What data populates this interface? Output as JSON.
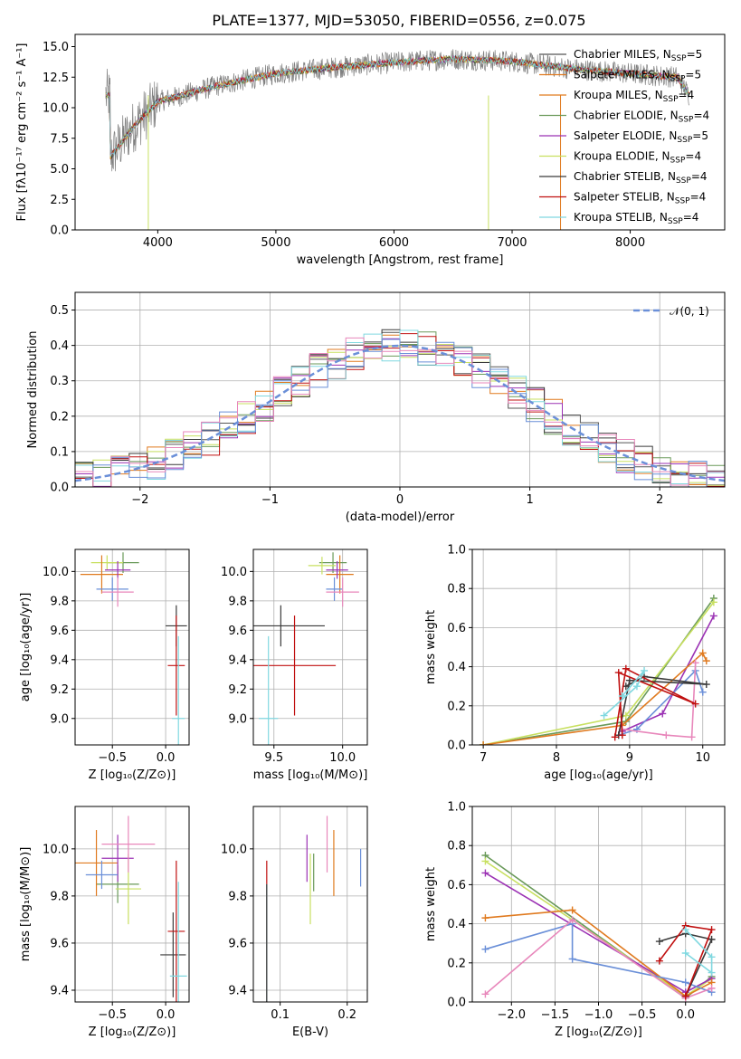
{
  "figure": {
    "title": "PLATE=1377, MJD=53050, FIBERID=0556, z=0.075"
  },
  "colors": [
    "#555555",
    "#e07a1f",
    "#6a9a5a",
    "#9b32b4",
    "#c8e060",
    "#3a3a3a",
    "#c01010",
    "#80d8e0",
    "#6a8fd8",
    "#e887bb",
    "#888888"
  ],
  "chart_data": [
    {
      "id": "spectrum",
      "type": "line",
      "xlabel": "wavelength [Angstrom, rest frame]",
      "ylabel": "Flux [fλ10⁻¹⁷ erg cm⁻² s⁻¹ A⁻¹]",
      "xlim": [
        3300,
        8800
      ],
      "ylim": [
        0,
        16
      ],
      "xticks": [
        "4000",
        "5000",
        "6000",
        "7000",
        "8000"
      ],
      "yticks": [
        "0.0",
        "2.5",
        "5.0",
        "7.5",
        "10.0",
        "12.5",
        "15.0"
      ],
      "legend_position": "right",
      "data_curve": [
        [
          3600,
          6.0
        ],
        [
          3800,
          8.5
        ],
        [
          4000,
          10.5
        ],
        [
          4200,
          11.0
        ],
        [
          4500,
          11.8
        ],
        [
          5000,
          12.8
        ],
        [
          5500,
          13.3
        ],
        [
          6000,
          13.7
        ],
        [
          6500,
          14.0
        ],
        [
          7000,
          13.8
        ],
        [
          7500,
          13.2
        ],
        [
          8000,
          12.8
        ],
        [
          8400,
          12.5
        ],
        [
          8500,
          11.0
        ]
      ],
      "series": [
        {
          "name": "Chabrier MILES, N",
          "sub": "SSP",
          "suffix": "=5"
        },
        {
          "name": "Salpeter MILES, N",
          "sub": "SSP",
          "suffix": "=5"
        },
        {
          "name": "Kroupa MILES, N",
          "sub": "SSP",
          "suffix": "=4"
        },
        {
          "name": "Chabrier ELODIE, N",
          "sub": "SSP",
          "suffix": "=4"
        },
        {
          "name": "Salpeter ELODIE, N",
          "sub": "SSP",
          "suffix": "=5"
        },
        {
          "name": "Kroupa ELODIE, N",
          "sub": "SSP",
          "suffix": "=4"
        },
        {
          "name": "Chabrier STELIB, N",
          "sub": "SSP",
          "suffix": "=4"
        },
        {
          "name": "Salpeter STELIB, N",
          "sub": "SSP",
          "suffix": "=4"
        },
        {
          "name": "Kroupa STELIB, N",
          "sub": "SSP",
          "suffix": "=4"
        }
      ]
    },
    {
      "id": "residuals",
      "type": "line",
      "xlabel": "(data-model)/error",
      "ylabel": "Normed distribution",
      "xlim": [
        -2.5,
        2.5
      ],
      "ylim": [
        0,
        0.55
      ],
      "xticks": [
        "−2",
        "−1",
        "0",
        "1",
        "2"
      ],
      "yticks": [
        "0.0",
        "0.1",
        "0.2",
        "0.3",
        "0.4",
        "0.5"
      ],
      "legend": "𝒩(0, 1)",
      "legend_position": "top-right",
      "grid": true
    },
    {
      "id": "age_vs_Z",
      "type": "scatter",
      "xlabel": "Z [log₁₀(Z/Z⊙)]",
      "ylabel": "age  [log₁₀(age/yr)]",
      "xlim": [
        -0.85,
        0.22
      ],
      "ylim": [
        8.82,
        10.15
      ],
      "xticks": [
        "−0.5",
        "0.0"
      ],
      "yticks": [
        "9.0",
        "9.2",
        "9.4",
        "9.6",
        "9.8",
        "10.0"
      ],
      "grid": true,
      "points": [
        {
          "x": -0.4,
          "y": 10.06,
          "xerr": 0.15,
          "yerr": 0.07,
          "c": 2
        },
        {
          "x": -0.55,
          "y": 10.06,
          "xerr": 0.15,
          "yerr": 0.05,
          "c": 4
        },
        {
          "x": -0.6,
          "y": 9.98,
          "xerr": 0.2,
          "yerr": 0.13,
          "c": 1
        },
        {
          "x": -0.45,
          "y": 10.01,
          "xerr": 0.12,
          "yerr": 0.06,
          "c": 3
        },
        {
          "x": -0.5,
          "y": 9.88,
          "xerr": 0.15,
          "yerr": 0.08,
          "c": 8
        },
        {
          "x": -0.45,
          "y": 9.86,
          "xerr": 0.15,
          "yerr": 0.1,
          "c": 9
        },
        {
          "x": 0.1,
          "y": 9.63,
          "xerr": 0.1,
          "yerr": 0.14,
          "c": 5
        },
        {
          "x": 0.1,
          "y": 9.36,
          "xerr": 0.08,
          "yerr": 0.34,
          "c": 6
        },
        {
          "x": 0.12,
          "y": 9.0,
          "xerr": 0.06,
          "yerr": 0.56,
          "c": 7
        }
      ]
    },
    {
      "id": "age_vs_mass",
      "type": "scatter",
      "xlabel": "mass [log₁₀(M/M⊙)]",
      "ylabel": "",
      "xlim": [
        9.35,
        10.18
      ],
      "ylim": [
        8.82,
        10.15
      ],
      "xticks": [
        "9.5",
        "10.0"
      ],
      "yticks": [
        "9.0",
        "9.2",
        "9.4",
        "9.6",
        "9.8",
        "10.0"
      ],
      "grid": true,
      "points": [
        {
          "x": 9.93,
          "y": 10.06,
          "xerr": 0.1,
          "yerr": 0.07,
          "c": 2
        },
        {
          "x": 9.85,
          "y": 10.04,
          "xerr": 0.1,
          "yerr": 0.06,
          "c": 4
        },
        {
          "x": 9.98,
          "y": 9.98,
          "xerr": 0.1,
          "yerr": 0.13,
          "c": 1
        },
        {
          "x": 9.96,
          "y": 10.01,
          "xerr": 0.08,
          "yerr": 0.06,
          "c": 3
        },
        {
          "x": 9.94,
          "y": 9.88,
          "xerr": 0.06,
          "yerr": 0.08,
          "c": 8
        },
        {
          "x": 10.0,
          "y": 9.86,
          "xerr": 0.12,
          "yerr": 0.1,
          "c": 9
        },
        {
          "x": 9.55,
          "y": 9.63,
          "xerr": 0.32,
          "yerr": 0.14,
          "c": 5
        },
        {
          "x": 9.65,
          "y": 9.36,
          "xerr": 0.3,
          "yerr": 0.34,
          "c": 6
        },
        {
          "x": 9.46,
          "y": 9.0,
          "xerr": 0.07,
          "yerr": 0.56,
          "c": 7
        }
      ]
    },
    {
      "id": "weight_vs_age",
      "type": "line",
      "xlabel": "age  [log₁₀(age/yr)]",
      "ylabel": "mass weight",
      "xlim": [
        6.85,
        10.3
      ],
      "ylim": [
        0,
        1.0
      ],
      "xticks": [
        "7",
        "8",
        "9",
        "10"
      ],
      "yticks": [
        "0.0",
        "0.2",
        "0.4",
        "0.6",
        "0.8",
        "1.0"
      ],
      "grid": true,
      "series": [
        {
          "c": 2,
          "x": [
            7.0,
            8.95,
            10.15
          ],
          "y": [
            0.0,
            0.12,
            0.75
          ]
        },
        {
          "c": 4,
          "x": [
            7.0,
            8.95,
            10.15
          ],
          "y": [
            0.0,
            0.15,
            0.73
          ]
        },
        {
          "c": 3,
          "x": [
            8.9,
            9.45,
            10.15
          ],
          "y": [
            0.07,
            0.16,
            0.66
          ]
        },
        {
          "c": 1,
          "x": [
            7.0,
            8.9,
            10.0,
            10.05
          ],
          "y": [
            0.0,
            0.1,
            0.47,
            0.43
          ]
        },
        {
          "c": 8,
          "x": [
            8.85,
            9.1,
            9.9,
            10.0
          ],
          "y": [
            0.05,
            0.08,
            0.38,
            0.27
          ]
        },
        {
          "c": 9,
          "x": [
            8.9,
            9.5,
            9.85,
            9.9
          ],
          "y": [
            0.08,
            0.05,
            0.04,
            0.42
          ]
        },
        {
          "c": 5,
          "x": [
            8.85,
            9.0,
            10.05,
            9.2,
            8.95
          ],
          "y": [
            0.05,
            0.33,
            0.31,
            0.35,
            0.3
          ]
        },
        {
          "c": 6,
          "x": [
            8.8,
            8.95,
            9.9,
            8.85,
            8.9
          ],
          "y": [
            0.04,
            0.39,
            0.21,
            0.37,
            0.05
          ]
        },
        {
          "c": 7,
          "x": [
            8.65,
            9.1,
            9.2,
            8.9
          ],
          "y": [
            0.15,
            0.3,
            0.38,
            0.25
          ]
        }
      ]
    },
    {
      "id": "mass_vs_Z",
      "type": "scatter",
      "xlabel": "Z [log₁₀(Z/Z⊙)]",
      "ylabel": "mass [log₁₀(M/M⊙)]",
      "xlim": [
        -0.85,
        0.22
      ],
      "ylim": [
        9.35,
        10.18
      ],
      "xticks": [
        "−0.5",
        "0.0"
      ],
      "yticks": [
        "9.4",
        "9.6",
        "9.8",
        "10.0"
      ],
      "grid": true,
      "points": [
        {
          "x": -0.45,
          "y": 9.85,
          "xerr": 0.2,
          "yerr": 0.08,
          "c": 2
        },
        {
          "x": -0.35,
          "y": 9.83,
          "xerr": 0.12,
          "yerr": 0.15,
          "c": 4
        },
        {
          "x": -0.65,
          "y": 9.94,
          "xerr": 0.2,
          "yerr": 0.14,
          "c": 1
        },
        {
          "x": -0.45,
          "y": 9.96,
          "xerr": 0.15,
          "yerr": 0.1,
          "c": 3
        },
        {
          "x": -0.6,
          "y": 9.89,
          "xerr": 0.15,
          "yerr": 0.06,
          "c": 8
        },
        {
          "x": -0.35,
          "y": 10.02,
          "xerr": 0.25,
          "yerr": 0.12,
          "c": 9
        },
        {
          "x": 0.07,
          "y": 9.55,
          "xerr": 0.12,
          "yerr": 0.18,
          "c": 5
        },
        {
          "x": 0.1,
          "y": 9.65,
          "xerr": 0.08,
          "yerr": 0.3,
          "c": 6
        },
        {
          "x": 0.12,
          "y": 9.46,
          "xerr": 0.08,
          "yerr": 0.4,
          "c": 7
        }
      ]
    },
    {
      "id": "mass_vs_ebv",
      "type": "scatter",
      "xlabel": "E(B-V)",
      "ylabel": "",
      "xlim": [
        0.06,
        0.23
      ],
      "ylim": [
        9.35,
        10.18
      ],
      "xticks": [
        "0.1",
        "0.2"
      ],
      "yticks": [
        "9.4",
        "9.6",
        "9.8",
        "10.0"
      ],
      "grid": true,
      "points": [
        {
          "x": 0.08,
          "y": 9.65,
          "xerr": 0,
          "yerr": 0.3,
          "c": 6
        },
        {
          "x": 0.08,
          "y": 9.45,
          "xerr": 0,
          "yerr": 0.4,
          "c": 7
        },
        {
          "x": 0.08,
          "y": 9.55,
          "xerr": 0,
          "yerr": 0.3,
          "c": 5
        },
        {
          "x": 0.14,
          "y": 9.96,
          "xerr": 0,
          "yerr": 0.1,
          "c": 3
        },
        {
          "x": 0.145,
          "y": 9.83,
          "xerr": 0,
          "yerr": 0.15,
          "c": 4
        },
        {
          "x": 0.15,
          "y": 9.9,
          "xerr": 0,
          "yerr": 0.08,
          "c": 2
        },
        {
          "x": 0.17,
          "y": 10.02,
          "xerr": 0,
          "yerr": 0.12,
          "c": 9
        },
        {
          "x": 0.18,
          "y": 9.94,
          "xerr": 0,
          "yerr": 0.14,
          "c": 1
        },
        {
          "x": 0.22,
          "y": 9.92,
          "xerr": 0,
          "yerr": 0.08,
          "c": 8
        }
      ]
    },
    {
      "id": "weight_vs_Z",
      "type": "line",
      "xlabel": "Z [log₁₀(Z/Z⊙)]",
      "ylabel": "mass weight",
      "xlim": [
        -2.45,
        0.45
      ],
      "ylim": [
        0,
        1.0
      ],
      "xticks": [
        "−2.0",
        "−1.5",
        "−1.0",
        "−0.5",
        "0.0"
      ],
      "yticks": [
        "0.0",
        "0.2",
        "0.4",
        "0.6",
        "0.8",
        "1.0"
      ],
      "grid": true,
      "series": [
        {
          "c": 2,
          "x": [
            -2.3,
            0.0,
            0.3
          ],
          "y": [
            0.75,
            0.02,
            0.13
          ]
        },
        {
          "c": 4,
          "x": [
            -2.3,
            0.0,
            0.3
          ],
          "y": [
            0.72,
            0.03,
            0.12
          ]
        },
        {
          "c": 3,
          "x": [
            -2.3,
            0.0,
            0.3
          ],
          "y": [
            0.66,
            0.05,
            0.12
          ]
        },
        {
          "c": 1,
          "x": [
            -2.3,
            -1.3,
            0.0,
            0.3
          ],
          "y": [
            0.43,
            0.47,
            0.03,
            0.1
          ]
        },
        {
          "c": 8,
          "x": [
            -2.3,
            -1.3,
            -1.3,
            0.0,
            0.3
          ],
          "y": [
            0.27,
            0.4,
            0.22,
            0.1,
            0.05
          ]
        },
        {
          "c": 9,
          "x": [
            -2.3,
            -1.3,
            0.0,
            0.3
          ],
          "y": [
            0.04,
            0.42,
            0.02,
            0.07
          ]
        },
        {
          "c": 5,
          "x": [
            -0.3,
            0.0,
            0.3,
            0.0
          ],
          "y": [
            0.31,
            0.35,
            0.32,
            0.03
          ]
        },
        {
          "c": 6,
          "x": [
            -0.3,
            0.0,
            0.3,
            0.0
          ],
          "y": [
            0.21,
            0.39,
            0.37,
            0.03
          ]
        },
        {
          "c": 7,
          "x": [
            0.0,
            0.3,
            0.3,
            0.0
          ],
          "y": [
            0.37,
            0.23,
            0.15,
            0.25
          ]
        }
      ]
    }
  ]
}
